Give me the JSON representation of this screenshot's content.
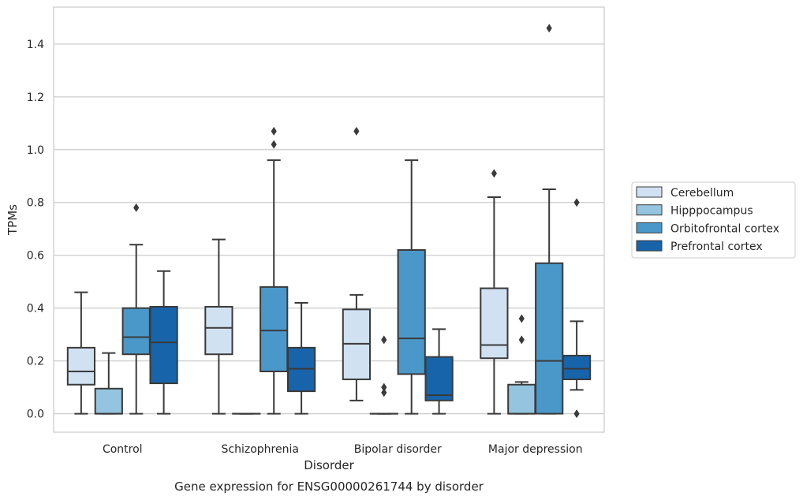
{
  "caption": "Gene expression for ENSG00000261744 by disorder",
  "chart_data": {
    "type": "box",
    "xlabel": "Disorder",
    "ylabel": "TPMs",
    "ylim": [
      -0.07,
      1.54
    ],
    "yticks": [
      "0.0",
      "0.2",
      "0.4",
      "0.6",
      "0.8",
      "1.0",
      "1.2",
      "1.4"
    ],
    "grid": "horizontal",
    "legend_position": "right",
    "categories": [
      "Control",
      "Schizophrenia",
      "Bipolar disorder",
      "Major depression"
    ],
    "series": [
      {
        "name": "Cerebellum",
        "color": "#d0e1f2",
        "boxes": [
          {
            "whislo": 0.0,
            "q1": 0.11,
            "med": 0.16,
            "q3": 0.25,
            "whishi": 0.46,
            "fliers": []
          },
          {
            "whislo": 0.0,
            "q1": 0.225,
            "med": 0.325,
            "q3": 0.405,
            "whishi": 0.66,
            "fliers": []
          },
          {
            "whislo": 0.05,
            "q1": 0.13,
            "med": 0.265,
            "q3": 0.395,
            "whishi": 0.45,
            "fliers": [
              1.07
            ]
          },
          {
            "whislo": 0.0,
            "q1": 0.21,
            "med": 0.26,
            "q3": 0.475,
            "whishi": 0.82,
            "fliers": [
              0.91
            ]
          }
        ]
      },
      {
        "name": "Hipppocampus",
        "color": "#94c4df",
        "boxes": [
          {
            "whislo": 0.0,
            "q1": 0.0,
            "med": 0.0,
            "q3": 0.095,
            "whishi": 0.23,
            "fliers": []
          },
          {
            "whislo": 0.0,
            "q1": 0.0,
            "med": 0.0,
            "q3": 0.0,
            "whishi": 0.0,
            "fliers": []
          },
          {
            "whislo": 0.0,
            "q1": 0.0,
            "med": 0.0,
            "q3": 0.0,
            "whishi": 0.0,
            "fliers": [
              0.28,
              0.1,
              0.08
            ]
          },
          {
            "whislo": 0.0,
            "q1": 0.0,
            "med": 0.0,
            "q3": 0.11,
            "whishi": 0.12,
            "fliers": [
              0.36,
              0.28
            ]
          }
        ]
      },
      {
        "name": "Orbitofrontal cortex",
        "color": "#4a98c9",
        "boxes": [
          {
            "whislo": 0.0,
            "q1": 0.225,
            "med": 0.29,
            "q3": 0.4,
            "whishi": 0.64,
            "fliers": [
              0.78
            ]
          },
          {
            "whislo": 0.0,
            "q1": 0.16,
            "med": 0.315,
            "q3": 0.48,
            "whishi": 0.96,
            "fliers": [
              1.02,
              1.07
            ]
          },
          {
            "whislo": 0.0,
            "q1": 0.15,
            "med": 0.285,
            "q3": 0.62,
            "whishi": 0.96,
            "fliers": []
          },
          {
            "whislo": 0.0,
            "q1": 0.0,
            "med": 0.2,
            "q3": 0.57,
            "whishi": 0.85,
            "fliers": [
              1.46
            ]
          }
        ]
      },
      {
        "name": "Prefrontal cortex",
        "color": "#1764ab",
        "boxes": [
          {
            "whislo": 0.0,
            "q1": 0.115,
            "med": 0.27,
            "q3": 0.405,
            "whishi": 0.54,
            "fliers": []
          },
          {
            "whislo": 0.0,
            "q1": 0.085,
            "med": 0.17,
            "q3": 0.25,
            "whishi": 0.42,
            "fliers": []
          },
          {
            "whislo": 0.0,
            "q1": 0.05,
            "med": 0.07,
            "q3": 0.215,
            "whishi": 0.32,
            "fliers": []
          },
          {
            "whislo": 0.09,
            "q1": 0.13,
            "med": 0.17,
            "q3": 0.22,
            "whishi": 0.35,
            "fliers": [
              0.8,
              0.0
            ]
          }
        ]
      }
    ]
  }
}
